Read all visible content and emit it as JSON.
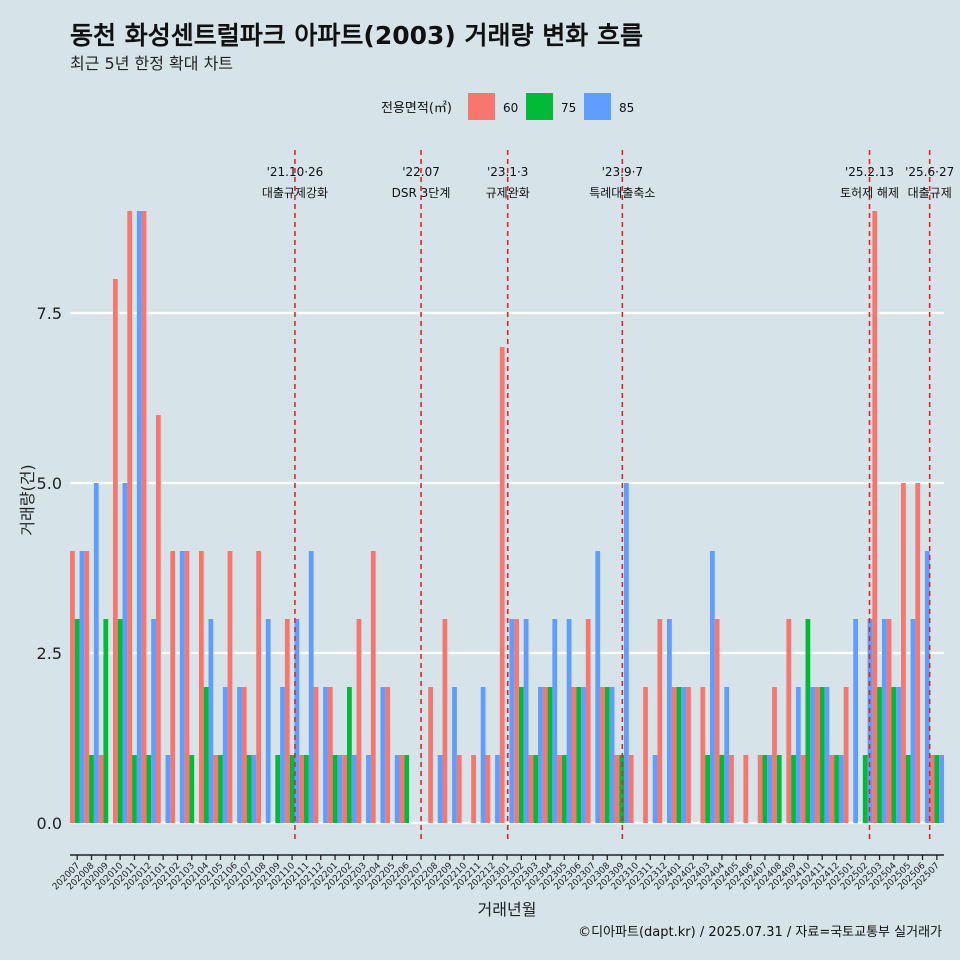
{
  "chart_data": {
    "type": "bar",
    "title": "동천 화성센트럴파크 아파트(2003) 거래량 변화 흐름",
    "subtitle": "최근 5년 한정 확대 차트",
    "xlabel": "거래년월",
    "ylabel": "거래량(건)",
    "caption": "©디아파트(dapt.kr) / 2025.07.31 / 자료=국토교통부 실거래가",
    "legend_title": "전용면적(㎡)",
    "legend_position": "top",
    "ylim": [
      -0.45,
      9.3
    ],
    "yticks": [
      "0.0",
      "2.5",
      "5.0",
      "7.5"
    ],
    "ytick_values": [
      0,
      2.5,
      5,
      7.5
    ],
    "categories": [
      "202007",
      "202008",
      "202009",
      "202010",
      "202011",
      "202012",
      "202101",
      "202102",
      "202103",
      "202104",
      "202105",
      "202106",
      "202107",
      "202108",
      "202109",
      "202110",
      "202111",
      "202112",
      "202201",
      "202202",
      "202203",
      "202204",
      "202205",
      "202206",
      "202207",
      "202208",
      "202209",
      "202210",
      "202211",
      "202212",
      "202301",
      "202302",
      "202303",
      "202304",
      "202305",
      "202306",
      "202307",
      "202308",
      "202309",
      "202310",
      "202311",
      "202312",
      "202401",
      "202402",
      "202403",
      "202404",
      "202405",
      "202406",
      "202407",
      "202408",
      "202409",
      "202410",
      "202411",
      "202412",
      "202501",
      "202502",
      "202503",
      "202504",
      "202505",
      "202506",
      "202507"
    ],
    "series": [
      {
        "name": "60",
        "color": "#f8766d",
        "values": [
          4,
          4,
          1,
          8,
          9,
          9,
          6,
          4,
          4,
          4,
          1,
          4,
          2,
          4,
          0,
          3,
          1,
          2,
          2,
          1,
          3,
          4,
          2,
          1,
          0,
          2,
          3,
          1,
          1,
          1,
          7,
          3,
          1,
          2,
          1,
          2,
          3,
          2,
          1,
          1,
          2,
          3,
          2,
          2,
          2,
          3,
          1,
          1,
          1,
          2,
          3,
          1,
          2,
          1,
          2,
          0,
          9,
          3,
          5,
          5,
          1
        ]
      },
      {
        "name": "75",
        "color": "#00ba38",
        "values": [
          3,
          1,
          3,
          3,
          1,
          1,
          0,
          0,
          1,
          2,
          1,
          0,
          1,
          0,
          1,
          1,
          1,
          0,
          1,
          2,
          0,
          0,
          0,
          1,
          0,
          0,
          0,
          0,
          0,
          0,
          0,
          2,
          1,
          2,
          1,
          2,
          0,
          2,
          1,
          0,
          0,
          0,
          2,
          0,
          1,
          1,
          0,
          0,
          1,
          1,
          1,
          3,
          2,
          1,
          0,
          1,
          2,
          2,
          1,
          0,
          1
        ]
      },
      {
        "name": "85",
        "color": "#619cff",
        "values": [
          4,
          5,
          0,
          5,
          9,
          3,
          1,
          4,
          0,
          3,
          2,
          2,
          1,
          3,
          2,
          3,
          4,
          2,
          1,
          1,
          1,
          2,
          1,
          0,
          0,
          1,
          2,
          0,
          2,
          1,
          3,
          3,
          2,
          3,
          3,
          2,
          4,
          2,
          5,
          0,
          1,
          3,
          2,
          0,
          4,
          2,
          0,
          0,
          1,
          0,
          2,
          2,
          2,
          1,
          3,
          3,
          3,
          2,
          3,
          4,
          1
        ]
      }
    ],
    "events": [
      {
        "date_label": "'21.10·26",
        "text": "대출규제강화",
        "month": "202110",
        "offset": 0.2
      },
      {
        "date_label": "'22.07",
        "text": "DSR 3단계",
        "month": "202207",
        "offset": 0
      },
      {
        "date_label": "'23.1·3",
        "text": "규제완화",
        "month": "202301",
        "offset": 0.05
      },
      {
        "date_label": "'23.9·7",
        "text": "특례대출축소",
        "month": "202309",
        "offset": 0.05
      },
      {
        "date_label": "'25.2.13",
        "text": "토허제 해제",
        "month": "202502",
        "offset": 0.3
      },
      {
        "date_label": "'25.6·27",
        "text": "대출규제",
        "month": "202506",
        "offset": 0.5
      }
    ]
  }
}
